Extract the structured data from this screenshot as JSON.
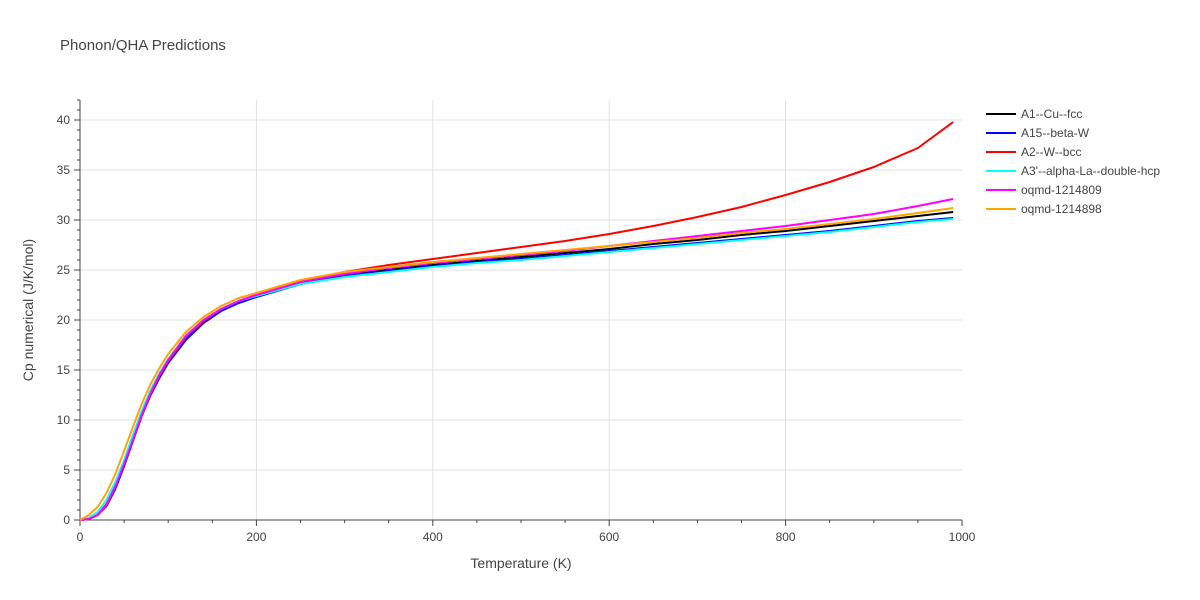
{
  "chart_data": {
    "type": "line",
    "title": "Phonon/QHA Predictions",
    "xlabel": "Temperature (K)",
    "ylabel": "Cp numerical (J/K/mol)",
    "xlim": [
      0,
      1000
    ],
    "ylim": [
      0,
      42
    ],
    "xticks": [
      0,
      200,
      400,
      600,
      800,
      1000
    ],
    "yticks": [
      0,
      5,
      10,
      15,
      20,
      25,
      30,
      35,
      40
    ],
    "grid": true,
    "legend_position": "top-right",
    "x": [
      0,
      10,
      20,
      30,
      40,
      50,
      60,
      70,
      80,
      90,
      100,
      120,
      140,
      160,
      180,
      200,
      250,
      300,
      350,
      400,
      450,
      500,
      550,
      600,
      650,
      700,
      750,
      800,
      850,
      900,
      950,
      990
    ],
    "series": [
      {
        "name": "A1--Cu--fcc",
        "color": "#000000",
        "values": [
          0,
          0.1,
          0.5,
          1.5,
          3.2,
          5.5,
          8.0,
          10.5,
          12.6,
          14.3,
          15.8,
          18.1,
          19.8,
          21.0,
          21.8,
          22.4,
          23.7,
          24.5,
          25.0,
          25.5,
          25.9,
          26.3,
          26.7,
          27.1,
          27.6,
          28.0,
          28.5,
          28.9,
          29.4,
          29.9,
          30.4,
          30.8
        ]
      },
      {
        "name": "A15--beta-W",
        "color": "#0000ff",
        "values": [
          0,
          0.1,
          0.5,
          1.4,
          3.1,
          5.4,
          7.9,
          10.4,
          12.5,
          14.2,
          15.7,
          18.0,
          19.7,
          20.9,
          21.7,
          22.3,
          23.6,
          24.4,
          24.9,
          25.4,
          25.8,
          26.1,
          26.5,
          26.9,
          27.3,
          27.7,
          28.1,
          28.5,
          28.9,
          29.4,
          29.9,
          30.2
        ]
      },
      {
        "name": "A2--W--bcc",
        "color": "#ff0000",
        "values": [
          0,
          0.1,
          0.5,
          1.6,
          3.4,
          5.7,
          8.1,
          10.5,
          12.6,
          14.4,
          15.9,
          18.3,
          19.9,
          21.1,
          21.9,
          22.5,
          23.9,
          24.8,
          25.5,
          26.1,
          26.7,
          27.3,
          27.9,
          28.6,
          29.4,
          30.3,
          31.3,
          32.5,
          33.8,
          35.3,
          37.2,
          39.8
        ]
      },
      {
        "name": "A3'--alpha-La--double-hcp",
        "color": "#00ffff",
        "values": [
          0,
          0.2,
          0.8,
          2.0,
          3.8,
          6.0,
          8.5,
          10.9,
          13.0,
          14.7,
          16.1,
          18.4,
          20.0,
          21.1,
          21.9,
          22.4,
          23.6,
          24.3,
          24.8,
          25.3,
          25.7,
          26.0,
          26.4,
          26.8,
          27.2,
          27.6,
          28.0,
          28.4,
          28.8,
          29.3,
          29.8,
          30.1
        ]
      },
      {
        "name": "oqmd-1214809",
        "color": "#ff00ff",
        "values": [
          0,
          0.1,
          0.5,
          1.5,
          3.3,
          5.6,
          8.0,
          10.5,
          12.7,
          14.5,
          16.0,
          18.4,
          20.0,
          21.1,
          21.9,
          22.5,
          23.8,
          24.6,
          25.2,
          25.7,
          26.1,
          26.5,
          26.9,
          27.4,
          27.9,
          28.4,
          28.9,
          29.4,
          30.0,
          30.6,
          31.4,
          32.1
        ]
      },
      {
        "name": "oqmd-1214898",
        "color": "#ffa500",
        "values": [
          0,
          0.5,
          1.3,
          2.7,
          4.6,
          6.9,
          9.3,
          11.6,
          13.6,
          15.2,
          16.6,
          18.8,
          20.3,
          21.4,
          22.2,
          22.7,
          24.0,
          24.8,
          25.3,
          25.8,
          26.2,
          26.6,
          27.0,
          27.4,
          27.8,
          28.2,
          28.7,
          29.1,
          29.6,
          30.1,
          30.7,
          31.2
        ]
      }
    ]
  }
}
